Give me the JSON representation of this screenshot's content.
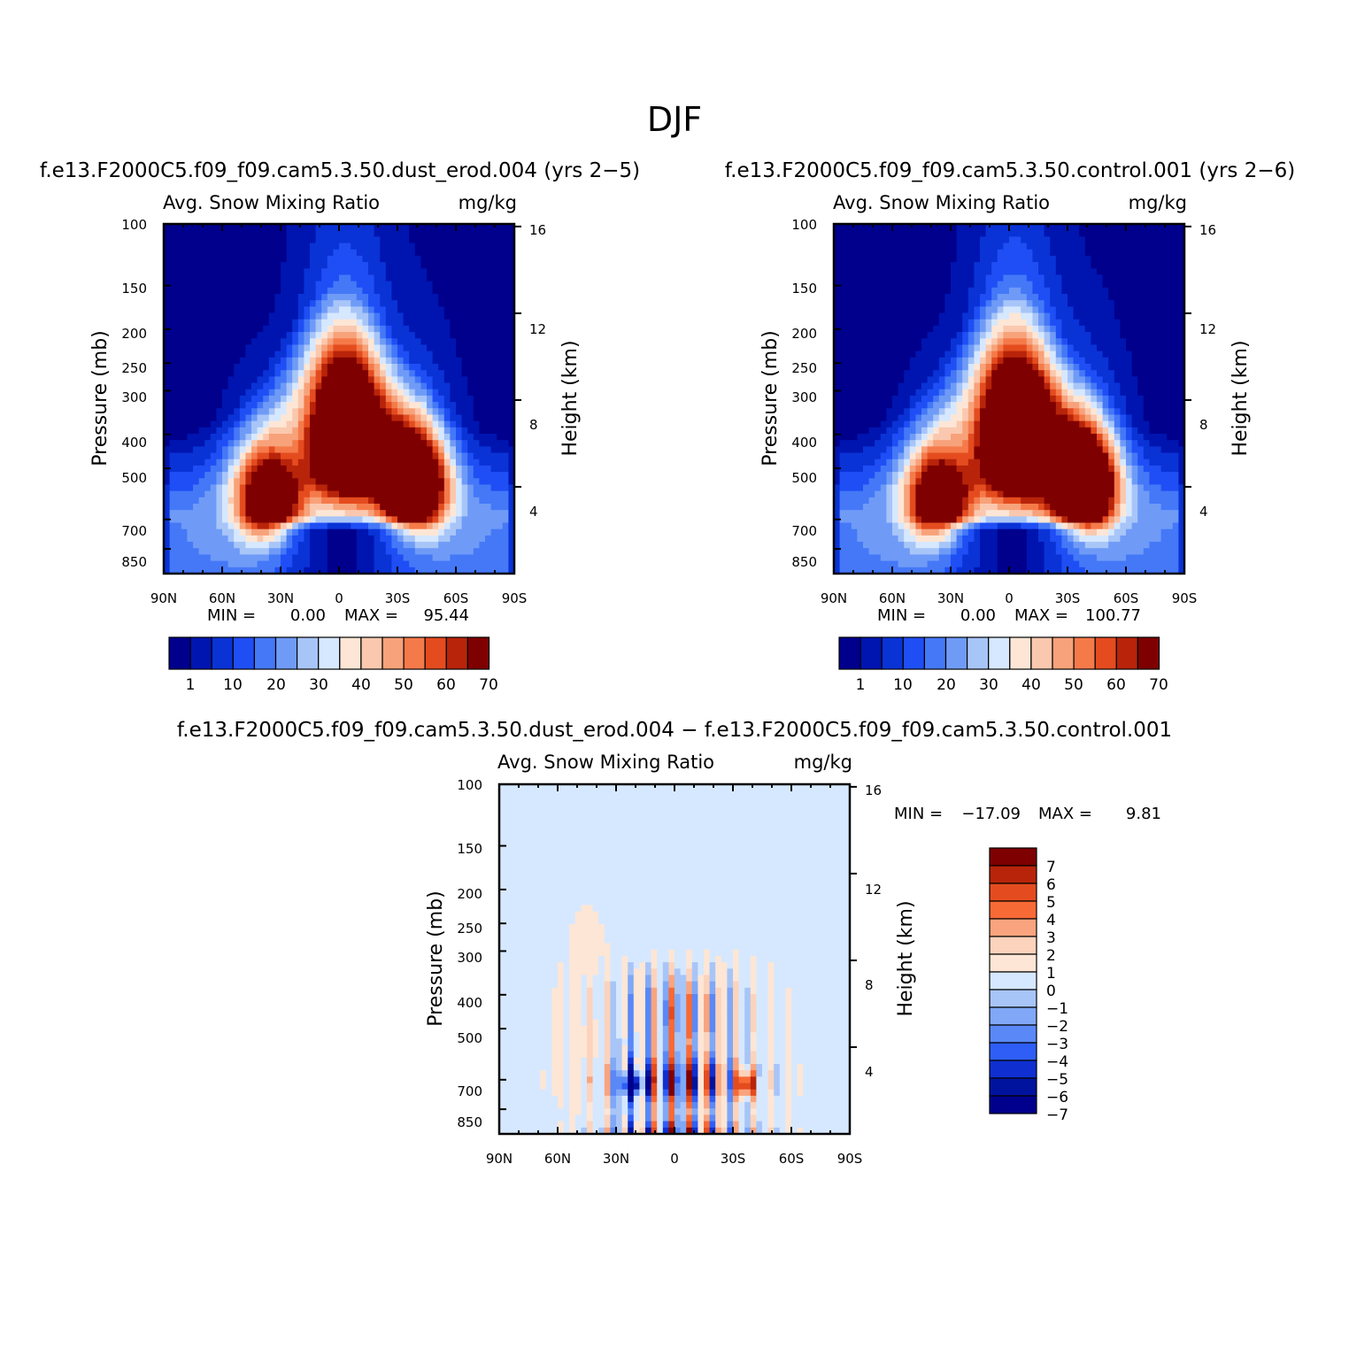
{
  "title": "DJF",
  "colors": {
    "absolute": [
      "#00008c",
      "#0015b0",
      "#0a33d6",
      "#1f4ef5",
      "#4478f7",
      "#6f9bf7",
      "#a8c5f8",
      "#d6e8ff",
      "#fde6d5",
      "#fac8ae",
      "#f7a27a",
      "#f57a4a",
      "#e44c1f",
      "#b8240a",
      "#7f0000"
    ],
    "difference": [
      "#7f0000",
      "#b8240a",
      "#e44c1f",
      "#f76a36",
      "#f9a47e",
      "#fcd3bc",
      "#fde6d5",
      "#d6e8ff",
      "#a8c5f8",
      "#80a8f7",
      "#5a88f6",
      "#2e5ef5",
      "#0f2fd0",
      "#00139e",
      "#00008c"
    ]
  },
  "chart_data": [
    {
      "id": "panel-a",
      "type": "heatmap",
      "case_title": "f.e13.F2000C5.f09_f09.cam5.3.50.dust_erod.004 (yrs 2-5)",
      "variable": "Avg. Snow Mixing Ratio",
      "units": "mg/kg",
      "xlabel": "",
      "ylabel": "Pressure (mb)",
      "ylabel_right": "Height (km)",
      "x_ticks": [
        "90N",
        "60N",
        "30N",
        "0",
        "30S",
        "60S",
        "90S"
      ],
      "y_ticks": [
        "100",
        "150",
        "200",
        "250",
        "300",
        "400",
        "500",
        "700",
        "850"
      ],
      "y_ticks_right": [
        "16",
        "12",
        "8",
        "4"
      ],
      "stats": {
        "min_label": "MIN =",
        "min": "0.00",
        "max_label": "MAX =",
        "max": "95.44"
      },
      "colorbar_labels": [
        "1",
        "10",
        "20",
        "30",
        "40",
        "50",
        "60",
        "70"
      ],
      "field": {
        "kind": "absolute",
        "lobes": [
          {
            "lat": 36,
            "p": 620,
            "amp": 75
          },
          {
            "lat": -38,
            "p": 560,
            "amp": 95.44
          },
          {
            "lat": 3,
            "p": 410,
            "amp": 58
          },
          {
            "lat": -10,
            "p": 420,
            "amp": 60
          }
        ]
      }
    },
    {
      "id": "panel-b",
      "type": "heatmap",
      "case_title": "f.e13.F2000C5.f09_f09.cam5.3.50.control.001 (yrs 2-6)",
      "variable": "Avg. Snow Mixing Ratio",
      "units": "mg/kg",
      "xlabel": "",
      "ylabel": "Pressure (mb)",
      "ylabel_right": "Height (km)",
      "x_ticks": [
        "90N",
        "60N",
        "30N",
        "0",
        "30S",
        "60S",
        "90S"
      ],
      "y_ticks": [
        "100",
        "150",
        "200",
        "250",
        "300",
        "400",
        "500",
        "700",
        "850"
      ],
      "y_ticks_right": [
        "16",
        "12",
        "8",
        "4"
      ],
      "stats": {
        "min_label": "MIN =",
        "min": "0.00",
        "max_label": "MAX =",
        "max": "100.77"
      },
      "colorbar_labels": [
        "1",
        "10",
        "20",
        "30",
        "40",
        "50",
        "60",
        "70"
      ],
      "field": {
        "kind": "absolute",
        "lobes": [
          {
            "lat": 36,
            "p": 620,
            "amp": 72
          },
          {
            "lat": -38,
            "p": 560,
            "amp": 100.77
          },
          {
            "lat": 3,
            "p": 410,
            "amp": 60
          },
          {
            "lat": -10,
            "p": 420,
            "amp": 63
          }
        ]
      }
    },
    {
      "id": "panel-diff",
      "type": "heatmap",
      "case_title": "f.e13.F2000C5.f09_f09.cam5.3.50.dust_erod.004 - f.e13.F2000C5.f09_f09.cam5.3.50.control.001",
      "variable": "Avg. Snow Mixing Ratio",
      "units": "mg/kg",
      "xlabel": "",
      "ylabel": "Pressure (mb)",
      "ylabel_right": "Height (km)",
      "x_ticks": [
        "90N",
        "60N",
        "30N",
        "0",
        "30S",
        "60S",
        "90S"
      ],
      "y_ticks": [
        "100",
        "150",
        "200",
        "250",
        "300",
        "400",
        "500",
        "700",
        "850"
      ],
      "y_ticks_right": [
        "16",
        "12",
        "8",
        "4"
      ],
      "stats": {
        "min_label": "MIN =",
        "min": "-17.09",
        "max_label": "MAX =",
        "max": "9.81"
      },
      "colorbar_labels": [
        "7",
        "6",
        "5",
        "4",
        "3",
        "2",
        "1",
        "0",
        "-1",
        "-2",
        "-3",
        "-4",
        "-5",
        "-6",
        "-7"
      ],
      "field": {
        "kind": "difference",
        "range": [
          -17.09,
          9.81
        ]
      }
    }
  ]
}
